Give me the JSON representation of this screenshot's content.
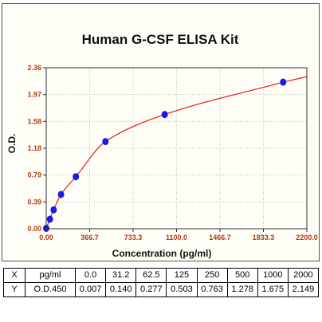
{
  "chart_data": {
    "type": "scatter",
    "title": "Human G-CSF ELISA Kit",
    "xlabel": "Concentration (pg/ml)",
    "ylabel": "O.D.",
    "xlim": [
      0,
      2200
    ],
    "ylim": [
      0,
      2.36
    ],
    "x_ticks": [
      "0.00",
      "366.7",
      "733.3",
      "1100.0",
      "1466.7",
      "1833.3",
      "2200.0"
    ],
    "y_ticks": [
      "0.00",
      "0.39",
      "0.79",
      "1.18",
      "1.58",
      "1.97",
      "2.36"
    ],
    "points_x": [
      0.0,
      31.2,
      62.5,
      125,
      250,
      500,
      1000,
      2000
    ],
    "points_y": [
      0.007,
      0.14,
      0.277,
      0.503,
      0.763,
      1.278,
      1.675,
      2.149
    ],
    "fit_curve": "4-parameter logistic fit",
    "point_color": "#1a1ae6",
    "curve_color": "#e61919"
  },
  "table": {
    "row_x": {
      "label": "X",
      "unit": "pg/ml",
      "values": [
        "0.0",
        "31.2",
        "62.5",
        "125",
        "250",
        "500",
        "1000",
        "2000"
      ]
    },
    "row_y": {
      "label": "Y",
      "unit": "O.D.450",
      "values": [
        "0.007",
        "0.140",
        "0.277",
        "0.503",
        "0.763",
        "1.278",
        "1.675",
        "2.149"
      ]
    }
  }
}
